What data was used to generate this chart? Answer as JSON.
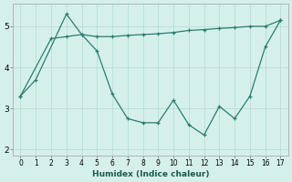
{
  "xlabel": "Humidex (Indice chaleur)",
  "x_ticks": [
    0,
    1,
    2,
    3,
    4,
    5,
    6,
    7,
    8,
    9,
    10,
    11,
    12,
    13,
    14,
    15,
    16,
    17
  ],
  "line1_x": [
    0,
    2,
    3,
    4,
    5,
    6,
    7,
    8,
    9,
    10,
    11,
    12,
    13,
    14,
    15,
    16,
    17
  ],
  "line1_y": [
    3.3,
    4.7,
    4.75,
    4.8,
    4.75,
    4.75,
    4.78,
    4.8,
    4.82,
    4.85,
    4.9,
    4.92,
    4.95,
    4.97,
    5.0,
    5.0,
    5.15
  ],
  "line2_x": [
    0,
    1,
    3,
    4,
    5,
    6,
    7,
    8,
    9,
    10,
    11,
    12,
    13,
    14,
    15,
    16,
    17
  ],
  "line2_y": [
    3.3,
    3.7,
    5.3,
    4.8,
    4.4,
    3.35,
    2.75,
    2.65,
    2.65,
    3.2,
    2.6,
    2.35,
    3.05,
    2.75,
    3.3,
    4.5,
    5.15
  ],
  "line_color": "#2a7d6e",
  "bg_color": "#d5f0eb",
  "grid_color": "#b8ddd7",
  "ylim": [
    1.85,
    5.55
  ],
  "yticks": [
    2,
    3,
    4,
    5
  ],
  "xlim": [
    -0.5,
    17.5
  ]
}
